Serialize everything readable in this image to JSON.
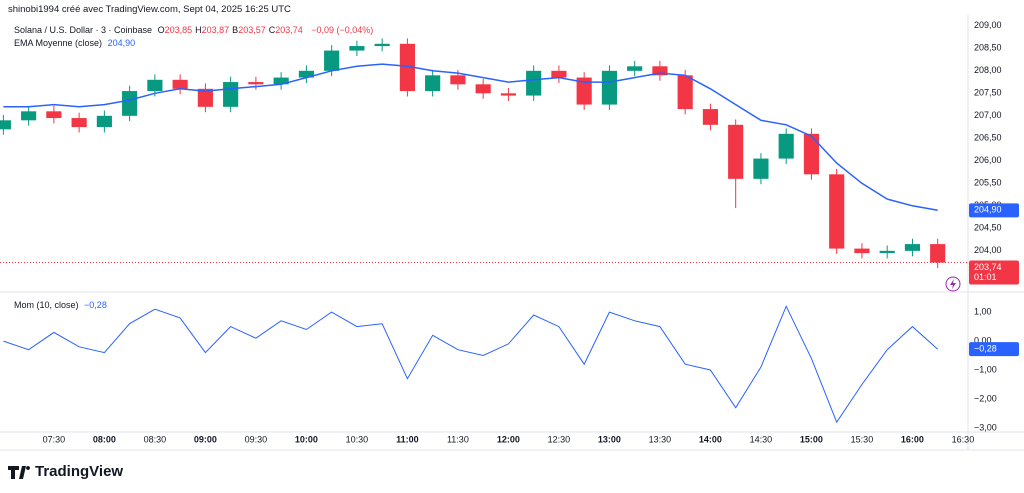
{
  "header": {
    "credit": "shinobi1994 créé avec TradingView.com, Sept 04, 2025 16:25 UTC"
  },
  "chart_data": [
    {
      "type": "candlestick",
      "title": "Solana / U.S. Dollar · 3 · Coinbase",
      "ohlc": [
        {
          "label": "O",
          "value": "203,85"
        },
        {
          "label": "H",
          "value": "203,87"
        },
        {
          "label": "B",
          "value": "203,57"
        },
        {
          "label": "C",
          "value": "203,74"
        }
      ],
      "change": "−0,09 (−0,04%)",
      "x": [
        "07:00",
        "07:15",
        "07:30",
        "07:45",
        "08:00",
        "08:15",
        "08:30",
        "08:45",
        "09:00",
        "09:15",
        "09:30",
        "09:45",
        "10:00",
        "10:15",
        "10:30",
        "10:45",
        "11:00",
        "11:15",
        "11:30",
        "11:45",
        "12:00",
        "12:15",
        "12:30",
        "12:45",
        "13:00",
        "13:15",
        "13:30",
        "13:45",
        "14:00",
        "14:15",
        "14:30",
        "14:45",
        "15:00",
        "15:15",
        "15:30",
        "15:45",
        "16:00",
        "16:15"
      ],
      "open": [
        206.7,
        206.9,
        207.1,
        206.95,
        206.75,
        207.0,
        207.55,
        207.8,
        207.6,
        207.2,
        207.75,
        207.7,
        207.85,
        208.0,
        208.45,
        208.55,
        208.6,
        207.55,
        207.9,
        207.7,
        207.5,
        207.45,
        208.0,
        207.85,
        207.25,
        208.0,
        208.1,
        207.9,
        207.15,
        206.8,
        205.6,
        206.05,
        206.6,
        205.7,
        204.05,
        203.95,
        204.0,
        204.15
      ],
      "high": [
        207.02,
        207.22,
        207.22,
        207.07,
        207.12,
        207.67,
        207.92,
        207.92,
        207.72,
        207.87,
        207.87,
        207.97,
        208.12,
        208.57,
        208.67,
        208.72,
        208.72,
        208.02,
        208.02,
        207.82,
        207.62,
        208.12,
        208.12,
        207.97,
        208.12,
        208.22,
        208.22,
        208.02,
        207.27,
        206.92,
        206.17,
        206.72,
        206.72,
        205.82,
        204.17,
        204.12,
        204.27,
        204.27
      ],
      "low": [
        206.58,
        206.78,
        206.83,
        206.63,
        206.63,
        206.88,
        207.43,
        207.48,
        207.08,
        207.08,
        207.58,
        207.58,
        207.73,
        207.88,
        208.33,
        208.43,
        207.43,
        207.43,
        207.58,
        207.38,
        207.33,
        207.33,
        207.73,
        207.13,
        207.13,
        207.88,
        207.78,
        207.03,
        206.68,
        204.95,
        205.48,
        205.93,
        205.58,
        203.93,
        203.83,
        203.83,
        203.88,
        203.62
      ],
      "close": [
        206.9,
        207.1,
        206.95,
        206.75,
        207.0,
        207.55,
        207.8,
        207.6,
        207.2,
        207.75,
        207.7,
        207.85,
        208.0,
        208.45,
        208.55,
        208.6,
        207.55,
        207.9,
        207.7,
        207.5,
        207.45,
        208.0,
        207.85,
        207.25,
        208.0,
        208.1,
        207.9,
        207.15,
        206.8,
        205.6,
        206.05,
        206.6,
        205.7,
        204.05,
        203.95,
        204.0,
        204.15,
        203.74
      ],
      "up_color": "#089981",
      "down_color": "#f23645",
      "last_price_label": "203,74",
      "countdown": "01:01",
      "series": [
        {
          "name": "EMA Moyenne (close)",
          "color": "#2962ff",
          "last_value_label": "204,90",
          "values": [
            207.2,
            207.2,
            207.25,
            207.2,
            207.25,
            207.35,
            207.5,
            207.6,
            207.55,
            207.6,
            207.65,
            207.7,
            207.85,
            208.0,
            208.1,
            208.15,
            208.1,
            208.0,
            207.95,
            207.85,
            207.75,
            207.8,
            207.85,
            207.75,
            207.75,
            207.85,
            207.95,
            207.9,
            207.6,
            207.25,
            206.9,
            206.8,
            206.55,
            205.95,
            205.5,
            205.15,
            205.0,
            204.9
          ]
        }
      ],
      "xlim": [
        "06:58",
        "16:33"
      ],
      "xticks": [
        "07:30",
        "08:00",
        "08:30",
        "09:00",
        "09:30",
        "10:00",
        "10:30",
        "11:00",
        "11:30",
        "12:00",
        "12:30",
        "13:00",
        "13:30",
        "14:00",
        "14:30",
        "15:00",
        "15:30",
        "16:00",
        "16:30"
      ],
      "ylim": [
        203.13,
        209.24
      ],
      "yticks": [
        {
          "value": 204,
          "label": "204,00"
        },
        {
          "value": 204.5,
          "label": "204,50"
        },
        {
          "value": 205,
          "label": "205,00"
        },
        {
          "value": 205.5,
          "label": "205,50"
        },
        {
          "value": 206,
          "label": "206,00"
        },
        {
          "value": 206.5,
          "label": "206,50"
        },
        {
          "value": 207,
          "label": "207,00"
        },
        {
          "value": 207.5,
          "label": "207,50"
        },
        {
          "value": 208,
          "label": "208,00"
        },
        {
          "value": 208.5,
          "label": "208,50"
        },
        {
          "value": 209,
          "label": "209,00"
        }
      ]
    },
    {
      "type": "line",
      "title": "Mom (10, close)",
      "x": [
        "07:00",
        "07:15",
        "07:30",
        "07:45",
        "08:00",
        "08:15",
        "08:30",
        "08:45",
        "09:00",
        "09:15",
        "09:30",
        "09:45",
        "10:00",
        "10:15",
        "10:30",
        "10:45",
        "11:00",
        "11:15",
        "11:30",
        "11:45",
        "12:00",
        "12:15",
        "12:30",
        "12:45",
        "13:00",
        "13:15",
        "13:30",
        "13:45",
        "14:00",
        "14:15",
        "14:30",
        "14:45",
        "15:00",
        "15:15",
        "15:30",
        "15:45",
        "16:00",
        "16:15"
      ],
      "series": [
        {
          "name": "Mom",
          "color": "#2962ff",
          "last_value_label": "−0,28",
          "values": [
            0,
            -0.3,
            0.3,
            -0.2,
            -0.4,
            0.6,
            1.1,
            0.8,
            -0.4,
            0.5,
            0.1,
            0.7,
            0.4,
            1.0,
            0.5,
            0.6,
            -1.3,
            0.2,
            -0.3,
            -0.5,
            -0.1,
            0.9,
            0.5,
            -0.8,
            1.0,
            0.7,
            0.5,
            -0.8,
            -1.0,
            -2.3,
            -0.9,
            1.2,
            -0.6,
            -2.8,
            -1.5,
            -0.3,
            0.5,
            -0.28
          ]
        }
      ],
      "xlim": [
        "06:58",
        "16:33"
      ],
      "ylim": [
        -3.14,
        1.59
      ],
      "yticks": [
        {
          "value": 1,
          "label": "1,00"
        },
        {
          "value": 0,
          "label": "0,00"
        },
        {
          "value": -1,
          "label": "−1,00"
        },
        {
          "value": -2,
          "label": "−2,00"
        },
        {
          "value": -3,
          "label": "−3,00"
        }
      ]
    }
  ],
  "footer": {
    "brand": "TradingView"
  }
}
